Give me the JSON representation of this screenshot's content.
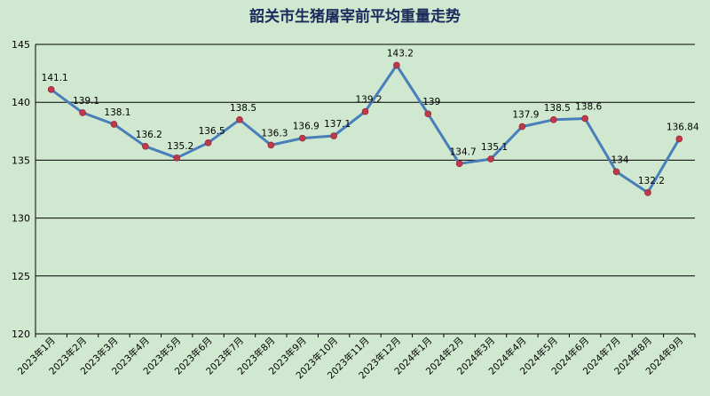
{
  "chart_data": {
    "type": "line",
    "title": "韶关市生猪屠宰前平均重量走势",
    "xlabel": "",
    "ylabel": "",
    "ylim": [
      120,
      145
    ],
    "yticks": [
      "120",
      "125",
      "130",
      "135",
      "140",
      "145"
    ],
    "grid": true,
    "categories": [
      "2023年1月",
      "2023年2月",
      "2023年3月",
      "2023年4月",
      "2023年5月",
      "2023年6月",
      "2023年7月",
      "2023年8月",
      "2023年9月",
      "2023年10月",
      "2023年11月",
      "2023年12月",
      "2024年1月",
      "2024年2月",
      "2024年3月",
      "2024年4月",
      "2024年5月",
      "2024年6月",
      "2024年7月",
      "2024年8月",
      "2024年9月"
    ],
    "values": [
      141.1,
      139.1,
      138.1,
      136.2,
      135.2,
      136.5,
      138.5,
      136.3,
      136.9,
      137.1,
      139.2,
      143.2,
      139,
      134.7,
      135.1,
      137.9,
      138.5,
      138.6,
      134,
      132.2,
      136.84
    ],
    "value_labels": [
      "141.1",
      "139.1",
      "138.1",
      "136.2",
      "135.2",
      "136.5",
      "138.5",
      "136.3",
      "136.9",
      "137.1",
      "139.2",
      "143.2",
      "139",
      "134.7",
      "135.1",
      "137.9",
      "138.5",
      "138.6",
      "134",
      "132.2",
      "136.84"
    ],
    "line_color": "#4a7ebb",
    "marker_color": "#c0394b",
    "background_color": "#cfe8cf"
  }
}
